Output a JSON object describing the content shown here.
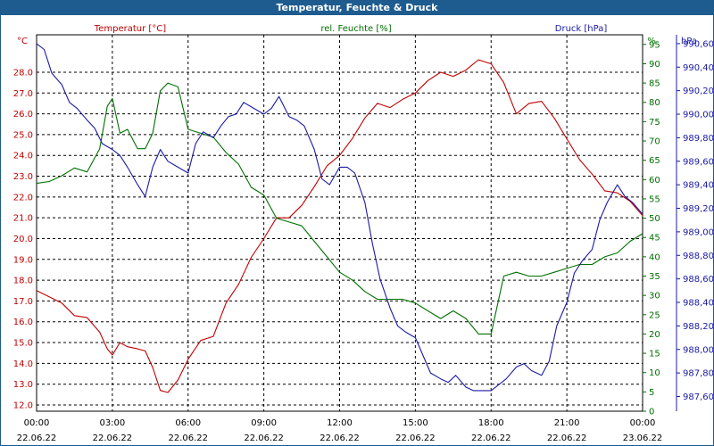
{
  "window": {
    "title": "Temperatur, Feuchte & Druck"
  },
  "chart_data": {
    "type": "line",
    "grid": true,
    "x_ticks": [
      {
        "time": "00:00",
        "date": "22.06.22"
      },
      {
        "time": "03:00",
        "date": "22.06.22"
      },
      {
        "time": "06:00",
        "date": "22.06.22"
      },
      {
        "time": "09:00",
        "date": "22.06.22"
      },
      {
        "time": "12:00",
        "date": "22.06.22"
      },
      {
        "time": "15:00",
        "date": "22.06.22"
      },
      {
        "time": "18:00",
        "date": "22.06.22"
      },
      {
        "time": "21:00",
        "date": "22.06.22"
      },
      {
        "time": "00:00",
        "date": "23.06.22"
      }
    ],
    "x_hours_range": [
      0,
      24
    ],
    "axes": {
      "temperature": {
        "label": "Temperatur [°C]",
        "unit": "°C",
        "color": "#c00000",
        "ylim": [
          11.7,
          29.8
        ],
        "ticks": [
          "12.0",
          "13.0",
          "14.0",
          "15.0",
          "16.0",
          "17.0",
          "18.0",
          "19.0",
          "20.0",
          "21.0",
          "22.0",
          "23.0",
          "24.0",
          "25.0",
          "26.0",
          "27.0",
          "28.0"
        ]
      },
      "humidity": {
        "label": "rel. Feuchte [%]",
        "unit": "%",
        "color": "#007000",
        "ylim": [
          0,
          97.5
        ],
        "ticks": [
          "0",
          "5",
          "10",
          "15",
          "20",
          "25",
          "30",
          "35",
          "40",
          "45",
          "50",
          "55",
          "60",
          "65",
          "70",
          "75",
          "80",
          "85",
          "90",
          "95"
        ]
      },
      "pressure": {
        "label": "Druck [hPa]",
        "unit": "hPa",
        "color": "#1a1aa6",
        "ylim": [
          987.475,
          990.675
        ],
        "ticks": [
          "987,60",
          "987,80",
          "988,00",
          "988,20",
          "988,40",
          "988,60",
          "988,80",
          "989,00",
          "989,20",
          "989,40",
          "989,60",
          "989,80",
          "990,00",
          "990,20",
          "990,40",
          "990,60"
        ]
      }
    },
    "series": [
      {
        "name": "Temperatur [°C]",
        "axis": "temperature",
        "color": "#c00000",
        "x": [
          0,
          0.5,
          1,
          1.5,
          2,
          2.5,
          2.8,
          3,
          3.3,
          3.6,
          4,
          4.3,
          4.6,
          4.9,
          5.2,
          5.6,
          6,
          6.5,
          7,
          7.5,
          8,
          8.5,
          9,
          9.5,
          10,
          10.5,
          11,
          11.5,
          12,
          12.5,
          13,
          13.5,
          14,
          14.5,
          15,
          15.5,
          16,
          16.5,
          17,
          17.5,
          18,
          18.5,
          19,
          19.5,
          20,
          20.5,
          21,
          21.5,
          22,
          22.5,
          23,
          23.5,
          24
        ],
        "y": [
          17.5,
          17.2,
          16.9,
          16.3,
          16.2,
          15.5,
          14.7,
          14.4,
          15.0,
          14.8,
          14.7,
          14.6,
          13.8,
          12.7,
          12.6,
          13.2,
          14.2,
          15.1,
          15.3,
          16.9,
          17.8,
          19.1,
          20.0,
          21.0,
          21.0,
          21.6,
          22.5,
          23.5,
          24.0,
          24.8,
          25.8,
          26.5,
          26.3,
          26.7,
          27.0,
          27.6,
          28.0,
          27.8,
          28.1,
          28.6,
          28.4,
          27.5,
          26.0,
          26.5,
          26.6,
          25.8,
          24.8,
          23.8,
          23.1,
          22.3,
          22.2,
          21.8,
          21.1
        ]
      },
      {
        "name": "rel. Feuchte [%]",
        "axis": "humidity",
        "color": "#007000",
        "x": [
          0,
          0.5,
          1,
          1.5,
          2,
          2.5,
          2.8,
          3,
          3.3,
          3.6,
          4,
          4.3,
          4.6,
          4.9,
          5.2,
          5.6,
          6,
          6.5,
          7,
          7.5,
          8,
          8.5,
          9,
          9.5,
          10,
          10.5,
          11,
          11.5,
          12,
          12.5,
          13,
          13.5,
          14,
          14.5,
          15,
          15.5,
          16,
          16.5,
          17,
          17.5,
          18,
          18.5,
          19,
          19.5,
          20,
          20.5,
          21,
          21.5,
          22,
          22.5,
          23,
          23.5,
          24
        ],
        "y": [
          59,
          59.5,
          61,
          63,
          62,
          68,
          79,
          81,
          72,
          73,
          68,
          68,
          72,
          83,
          85,
          84,
          73,
          72,
          71,
          67,
          64,
          58,
          56,
          50,
          49,
          48,
          44,
          40,
          36,
          34,
          31,
          29,
          29,
          29,
          28,
          26,
          24,
          26,
          24,
          20,
          20,
          35,
          36,
          35,
          35,
          36,
          37,
          38,
          38,
          40,
          41,
          44,
          46
        ]
      },
      {
        "name": "Druck [hPa]",
        "axis": "pressure",
        "color": "#1a1aa6",
        "x": [
          0,
          0.3,
          0.6,
          0.8,
          1,
          1.3,
          1.6,
          2,
          2.3,
          2.6,
          3,
          3.3,
          3.6,
          4,
          4.3,
          4.6,
          4.9,
          5.2,
          5.6,
          6,
          6.3,
          6.6,
          7,
          7.3,
          7.6,
          7.9,
          8.2,
          8.6,
          9,
          9.3,
          9.6,
          10,
          10.3,
          10.6,
          11,
          11.3,
          11.6,
          12,
          12.3,
          12.6,
          13,
          13.3,
          13.6,
          14,
          14.3,
          14.6,
          15,
          15.3,
          15.6,
          16,
          16.3,
          16.6,
          17,
          17.3,
          17.6,
          18,
          18.3,
          18.6,
          19,
          19.3,
          19.6,
          20,
          20.3,
          20.6,
          21,
          21.3,
          21.6,
          22,
          22.3,
          22.6,
          23,
          23.3,
          23.6,
          24
        ],
        "y": [
          990.6,
          990.55,
          990.35,
          990.3,
          990.25,
          990.1,
          990.05,
          989.95,
          989.88,
          989.75,
          989.7,
          989.65,
          989.55,
          989.4,
          989.3,
          989.55,
          989.7,
          989.6,
          989.55,
          989.5,
          989.75,
          989.85,
          989.8,
          989.9,
          989.98,
          990.0,
          990.1,
          990.05,
          990.0,
          990.05,
          990.15,
          989.98,
          989.95,
          989.9,
          989.7,
          989.45,
          989.4,
          989.55,
          989.55,
          989.5,
          989.25,
          988.9,
          988.6,
          988.35,
          988.2,
          988.15,
          988.1,
          987.95,
          987.8,
          987.75,
          987.72,
          987.78,
          987.68,
          987.65,
          987.65,
          987.65,
          987.7,
          987.75,
          987.85,
          987.88,
          987.82,
          987.78,
          987.9,
          988.2,
          988.4,
          988.65,
          988.75,
          988.85,
          989.1,
          989.25,
          989.4,
          989.3,
          989.25,
          989.15
        ]
      }
    ]
  }
}
